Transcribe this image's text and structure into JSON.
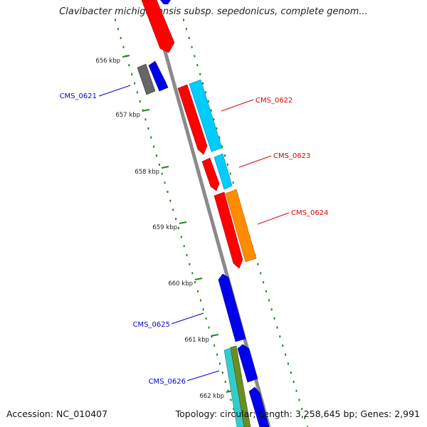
{
  "title": "Clavibacter michiganensis subsp. sepedonicus, complete genom...",
  "footer": {
    "accession": "Accession: NC_010407",
    "topology": "Topology: circular; Length: 3,258,645 bp; Genes: 2,991"
  },
  "ticks": [
    "656 kbp",
    "657 kbp",
    "658 kbp",
    "659 kbp",
    "660 kbp",
    "661 kbp",
    "662 kbp"
  ],
  "gene_labels": [
    {
      "name": "CMS_0621",
      "color": "#0000cc"
    },
    {
      "name": "CMS_0622",
      "color": "#dd0000"
    },
    {
      "name": "CMS_0623",
      "color": "#dd0000"
    },
    {
      "name": "CMS_0624",
      "color": "#dd0000"
    },
    {
      "name": "CMS_0625",
      "color": "#0000cc"
    },
    {
      "name": "CMS_0626",
      "color": "#0000cc"
    }
  ],
  "colors": {
    "backbone": "#8a8a8a",
    "tick_marks": "#1a8a1a",
    "red": "#ff0000",
    "blue": "#0000ee",
    "cyan": "#00ccff",
    "orange": "#ff8c00",
    "gray": "#666666",
    "teal": "#33cccc",
    "olive": "#6b8e23"
  }
}
